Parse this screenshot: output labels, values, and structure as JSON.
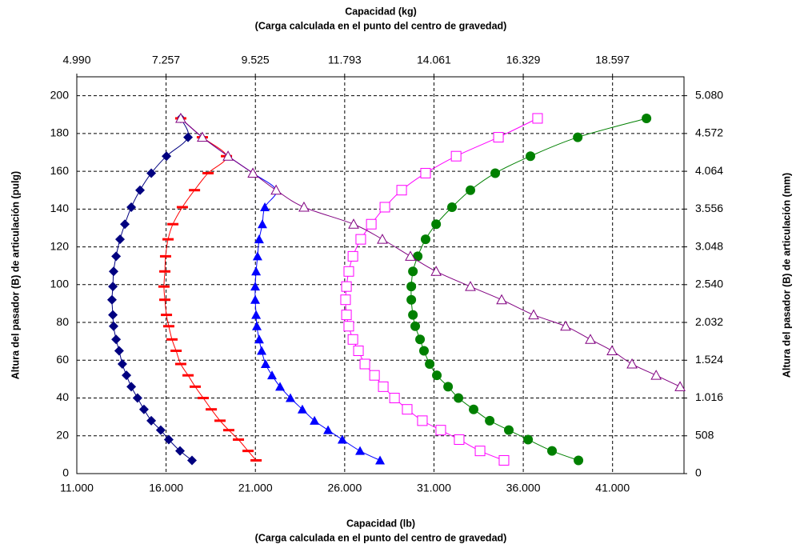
{
  "chart_data": {
    "type": "scatter",
    "xlabel": [
      "Capacidad (lb)",
      "(Carga calculada en el punto del centro de gravedad)"
    ],
    "x2label": [
      "Capacidad (kg)",
      "(Carga calculada en el punto del centro de gravedad)"
    ],
    "ylabel": "Altura del pasador (B) de articulación (pulg)",
    "y2label": "Altura del pasador (B) de articulación (mm)",
    "xlim": [
      11000,
      45000
    ],
    "xticks": [
      {
        "value": 11000,
        "label": "11.000"
      },
      {
        "value": 16000,
        "label": "16.000"
      },
      {
        "value": 21000,
        "label": "21.000"
      },
      {
        "value": 26000,
        "label": "26.000"
      },
      {
        "value": 31000,
        "label": "31.000"
      },
      {
        "value": 36000,
        "label": "36.000"
      },
      {
        "value": 41000,
        "label": "41.000"
      }
    ],
    "x2lim": [
      4990,
      20412
    ],
    "x2ticks": [
      {
        "value": 4990,
        "label": "4.990"
      },
      {
        "value": 7257,
        "label": "7.257"
      },
      {
        "value": 9525,
        "label": "9.525"
      },
      {
        "value": 11793,
        "label": "11.793"
      },
      {
        "value": 14061,
        "label": "14.061"
      },
      {
        "value": 16329,
        "label": "16.329"
      },
      {
        "value": 18597,
        "label": "18.597"
      }
    ],
    "ylim": [
      0,
      210
    ],
    "yticks": [
      0,
      20,
      40,
      60,
      80,
      100,
      120,
      140,
      160,
      180,
      200
    ],
    "y2lim": [
      0,
      5334
    ],
    "y2ticks": [
      0,
      508,
      {
        "value": 1016,
        "label": "1.016"
      },
      {
        "value": 1524,
        "label": "1.524"
      },
      {
        "value": 2032,
        "label": "2.032"
      },
      {
        "value": 2540,
        "label": "2.540"
      },
      {
        "value": 3048,
        "label": "3.048"
      },
      {
        "value": 3556,
        "label": "3.556"
      },
      {
        "value": 4064,
        "label": "4.064"
      },
      {
        "value": 4572,
        "label": "4.572"
      },
      {
        "value": 5080,
        "label": "5.080"
      }
    ],
    "grid": true,
    "series": [
      {
        "color": "#000080",
        "marker": "diamond",
        "x": [
          17450,
          16780,
          16150,
          15700,
          15170,
          14760,
          14400,
          14050,
          13780,
          13550,
          13370,
          13200,
          13060,
          13020,
          12970,
          13020,
          13060,
          13200,
          13420,
          13690,
          14050,
          14540,
          15170,
          16020,
          17230,
          16820
        ],
        "y": [
          7,
          12,
          18,
          23,
          28,
          34,
          40,
          46,
          52,
          58,
          65,
          71,
          78,
          84,
          92,
          99,
          107,
          115,
          124,
          132,
          141,
          150,
          159,
          168,
          178,
          188
        ]
      },
      {
        "color": "#ff0000",
        "marker": "dash",
        "x": [
          21040,
          20590,
          20050,
          19510,
          19020,
          18530,
          18080,
          17630,
          17230,
          16820,
          16560,
          16330,
          16150,
          16020,
          15930,
          15880,
          15930,
          15970,
          16110,
          16380,
          16910,
          17590,
          18350,
          19380,
          18030,
          16820
        ],
        "y": [
          7,
          12,
          18,
          23,
          28,
          34,
          40,
          46,
          52,
          58,
          65,
          71,
          78,
          84,
          92,
          99,
          107,
          115,
          124,
          132,
          141,
          150,
          159,
          168,
          178,
          188
        ]
      },
      {
        "color": "#0000ff",
        "marker": "triangle",
        "x": [
          27980,
          26860,
          25870,
          25070,
          24310,
          23630,
          22960,
          22380,
          21930,
          21570,
          21350,
          21210,
          21080,
          21040,
          20990,
          20990,
          21040,
          21120,
          21210,
          21390,
          21530,
          22160,
          20860,
          19470,
          18030,
          16820
        ],
        "y": [
          7,
          12,
          18,
          23,
          28,
          34,
          40,
          46,
          52,
          58,
          65,
          71,
          78,
          84,
          92,
          99,
          107,
          115,
          124,
          132,
          141,
          150,
          159,
          168,
          178,
          188
        ]
      },
      {
        "color": "#ff00ff",
        "marker": "square-open",
        "x": [
          34920,
          33580,
          32410,
          31380,
          30350,
          29500,
          28790,
          28160,
          27670,
          27130,
          26770,
          26460,
          26230,
          26100,
          26050,
          26100,
          26230,
          26460,
          26900,
          27490,
          28250,
          29190,
          30530,
          32240,
          34610,
          36800
        ],
        "y": [
          7,
          12,
          18,
          23,
          28,
          34,
          40,
          46,
          52,
          58,
          65,
          71,
          78,
          84,
          92,
          99,
          107,
          115,
          124,
          132,
          141,
          150,
          159,
          168,
          178,
          188
        ]
      },
      {
        "color": "#008000",
        "marker": "circle",
        "x": [
          39090,
          37610,
          36270,
          35190,
          34120,
          33220,
          32370,
          31790,
          31160,
          30760,
          30440,
          30220,
          29950,
          29820,
          29730,
          29730,
          29820,
          30090,
          30530,
          31120,
          32010,
          33040,
          34430,
          36400,
          39050,
          42900
        ],
        "y": [
          7,
          12,
          18,
          23,
          28,
          34,
          40,
          46,
          52,
          58,
          65,
          71,
          78,
          84,
          92,
          99,
          107,
          115,
          124,
          132,
          141,
          150,
          159,
          168,
          178,
          188
        ]
      },
      {
        "color": "#800080",
        "marker": "triangle-open",
        "x": [
          44780,
          43440,
          42090,
          40970,
          39760,
          38370,
          36580,
          34790,
          33040,
          31120,
          29680,
          28110,
          26500,
          23720,
          22160,
          20860,
          19470,
          18030,
          16820
        ],
        "y": [
          46,
          52,
          58,
          65,
          71,
          78,
          84,
          92,
          99,
          107,
          115,
          124,
          132,
          141,
          150,
          159,
          168,
          178,
          188
        ]
      }
    ]
  }
}
